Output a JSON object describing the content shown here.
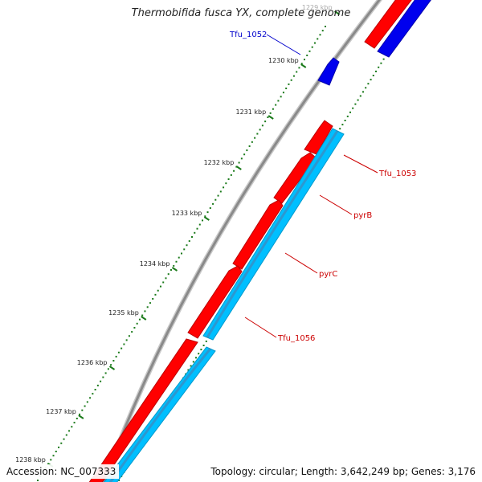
{
  "title": "Thermobifida fusca YX, complete genome",
  "footer": {
    "accession": "Accession: NC_007333",
    "summary": "Topology: circular; Length: 3,642,249 bp; Genes: 3,176"
  },
  "colors": {
    "forward_gene": "#ff0000",
    "reverse_gene": "#0000ee",
    "forward_cds": "#00bfff",
    "backbone": "#999999",
    "ticks": "#1a7a1a",
    "label_blue": "#0000cc",
    "label_red": "#cc0000"
  },
  "kbp_labels": [
    "1229 kbp",
    "1230 kbp",
    "1231 kbp",
    "1232 kbp",
    "1233 kbp",
    "1234 kbp",
    "1235 kbp",
    "1236 kbp",
    "1237 kbp",
    "1238 kbp"
  ],
  "gene_labels": [
    {
      "text": "Tfu_1052",
      "color": "blue"
    },
    {
      "text": "Tfu_1053",
      "color": "red"
    },
    {
      "text": "pyrB",
      "color": "red"
    },
    {
      "text": "pyrC",
      "color": "red"
    },
    {
      "text": "Tfu_1056",
      "color": "red"
    }
  ]
}
